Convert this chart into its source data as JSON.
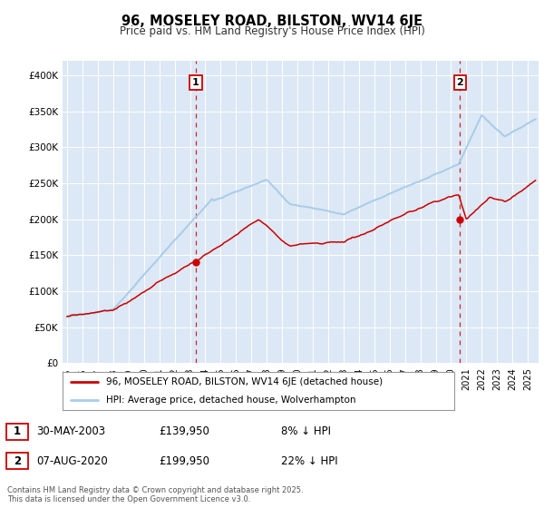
{
  "title": "96, MOSELEY ROAD, BILSTON, WV14 6JE",
  "subtitle": "Price paid vs. HM Land Registry's House Price Index (HPI)",
  "legend_line1": "96, MOSELEY ROAD, BILSTON, WV14 6JE (detached house)",
  "legend_line2": "HPI: Average price, detached house, Wolverhampton",
  "footer": "Contains HM Land Registry data © Crown copyright and database right 2025.\nThis data is licensed under the Open Government Licence v3.0.",
  "hpi_color": "#a8cce8",
  "price_color": "#cc0000",
  "dashed_color": "#cc0000",
  "background_color": "#dce8f5",
  "ylim": [
    0,
    420000
  ],
  "yticks": [
    0,
    50000,
    100000,
    150000,
    200000,
    250000,
    300000,
    350000,
    400000
  ],
  "sale1_x": 2003.38,
  "sale1_y": 139950,
  "sale2_x": 2020.58,
  "sale2_y": 199950,
  "xmin": 1994.7,
  "xmax": 2025.7
}
